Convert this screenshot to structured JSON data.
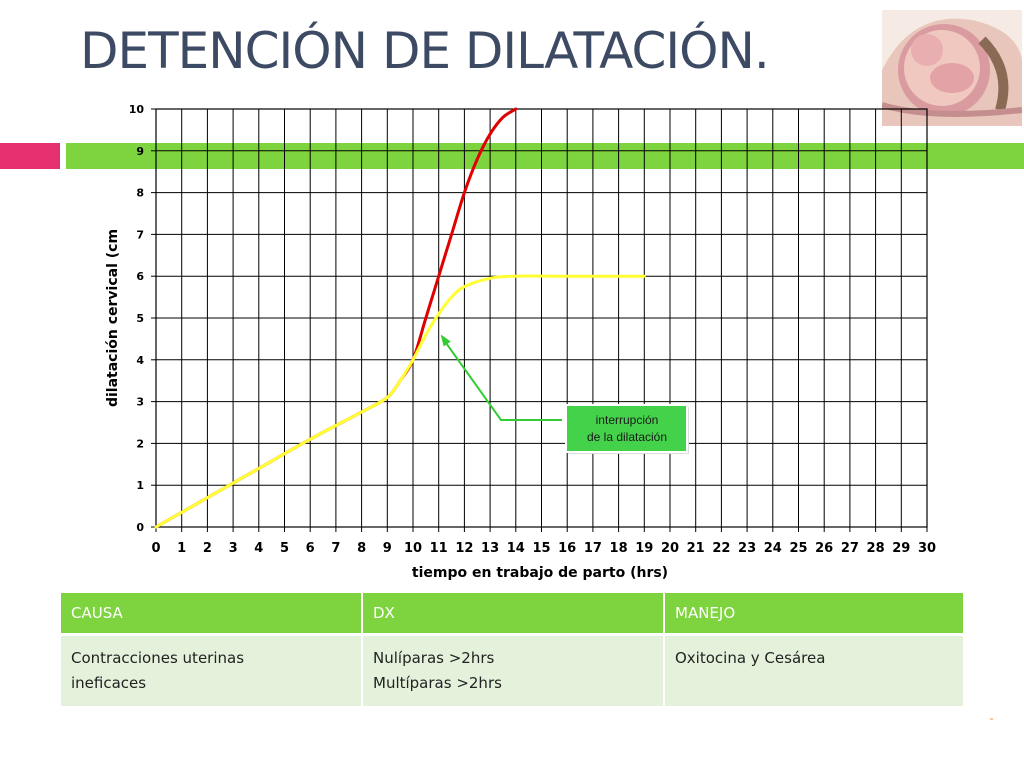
{
  "slide": {
    "title": "DETENCIÓN DE DILATACIÓN.",
    "image": "fetus-in-uterus-illustration"
  },
  "colors": {
    "title": "#3d4a63",
    "accent_pink": "#e6306f",
    "accent_green": "#7ed43f",
    "table_header": "#7ed43f",
    "table_row": "#e4f2dc",
    "normal_curve": "#e00000",
    "arrest_curve": "#ffff33",
    "annotation": "#33cc33"
  },
  "chart_data": {
    "type": "line",
    "xlabel": "tiempo en trabajo de parto (hrs)",
    "ylabel": "dilatación cervical (cm",
    "xlim": [
      0,
      30
    ],
    "ylim": [
      0,
      10
    ],
    "x_ticks": [
      "0",
      "1",
      "2",
      "3",
      "4",
      "5",
      "6",
      "7",
      "8",
      "9",
      "10",
      "11",
      "12",
      "13",
      "14",
      "15",
      "16",
      "17",
      "18",
      "19",
      "20",
      "21",
      "22",
      "23",
      "24",
      "25",
      "26",
      "27",
      "28",
      "29",
      "30"
    ],
    "y_ticks": [
      "0",
      "1",
      "2",
      "3",
      "4",
      "5",
      "6",
      "7",
      "8",
      "9",
      "10"
    ],
    "grid": true,
    "series": [
      {
        "color": "#e00000",
        "points": [
          [
            0,
            0
          ],
          [
            2,
            0.7
          ],
          [
            4,
            1.4
          ],
          [
            6,
            2.1
          ],
          [
            8,
            2.75
          ],
          [
            9,
            3.1
          ],
          [
            9.5,
            3.5
          ],
          [
            10,
            4.0
          ],
          [
            10.5,
            5.0
          ],
          [
            11,
            6.0
          ],
          [
            11.5,
            7.0
          ],
          [
            12,
            8.0
          ],
          [
            12.5,
            8.8
          ],
          [
            13,
            9.4
          ],
          [
            13.5,
            9.8
          ],
          [
            14,
            10
          ]
        ]
      },
      {
        "color": "#ffff33",
        "points": [
          [
            0,
            0
          ],
          [
            2,
            0.7
          ],
          [
            4,
            1.4
          ],
          [
            6,
            2.1
          ],
          [
            8,
            2.75
          ],
          [
            9,
            3.1
          ],
          [
            9.5,
            3.5
          ],
          [
            10,
            4.0
          ],
          [
            10.5,
            4.6
          ],
          [
            11,
            5.1
          ],
          [
            11.5,
            5.5
          ],
          [
            12,
            5.75
          ],
          [
            13,
            5.95
          ],
          [
            14,
            6.0
          ],
          [
            16,
            6.0
          ],
          [
            19,
            6.0
          ]
        ]
      }
    ],
    "annotation": {
      "line1": "interrupción",
      "line2": "de la dilatación",
      "points_to": [
        11,
        4.7
      ]
    }
  },
  "table": {
    "headers": [
      "CAUSA",
      "DX",
      "MANEJO"
    ],
    "row": {
      "causa": [
        "Contracciones uterinas",
        "ineficaces"
      ],
      "dx": [
        "Nulíparas >2hrs",
        "Multíparas >2hrs"
      ],
      "manejo": [
        "Oxitocina y Cesárea"
      ]
    }
  }
}
